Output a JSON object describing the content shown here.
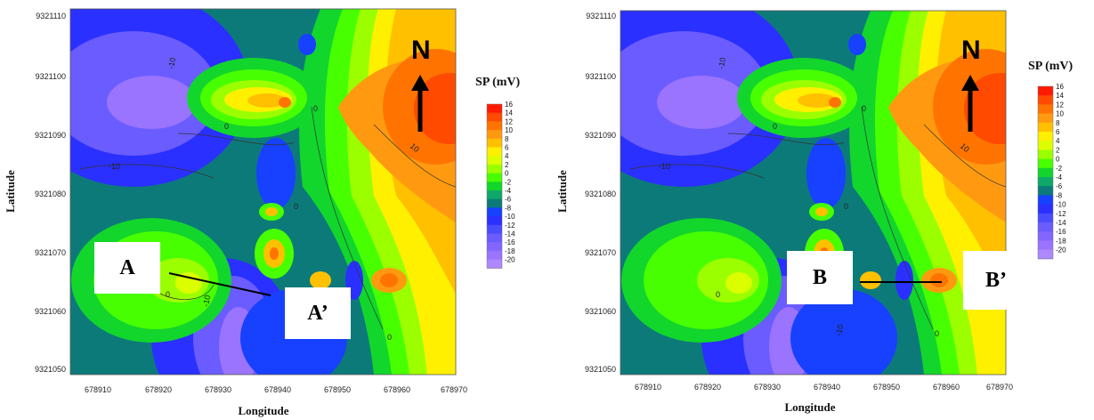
{
  "colorbar": {
    "title": "SP (mV)",
    "levels": [
      16,
      14,
      12,
      10,
      8,
      6,
      4,
      2,
      0,
      -2,
      -4,
      -6,
      -8,
      -10,
      -12,
      -14,
      -16,
      -18,
      -20
    ],
    "level_labels": [
      "16",
      "14",
      "12",
      "10",
      "8",
      "6",
      "4",
      "2",
      "0",
      "-2",
      "-4",
      "-6",
      "-8",
      "-10",
      "-12",
      "-14",
      "-16",
      "-18",
      "-20"
    ],
    "colors": [
      "#ff1a00",
      "#ff4a00",
      "#ff7400",
      "#ff9a10",
      "#ffc000",
      "#fff000",
      "#dcff00",
      "#9cff00",
      "#48ff00",
      "#12d62c",
      "#0ea86a",
      "#0d7a7a",
      "#1740ff",
      "#2a30ff",
      "#4a4aff",
      "#6a5cff",
      "#8466ff",
      "#9a74ff",
      "#ad88ff"
    ]
  },
  "north": {
    "label": "N"
  },
  "axes": {
    "xlabel": "Longitude",
    "ylabel": "Latitude",
    "x_ticks": [
      "678910",
      "678920",
      "678930",
      "678940",
      "678950",
      "678960",
      "678970"
    ],
    "y_ticks": [
      "9321110",
      "9321100",
      "9321090",
      "9321080",
      "9321070",
      "9321060",
      "9321050"
    ]
  },
  "contour_labels": [
    "-10",
    "0",
    "10",
    "-10",
    "0",
    "0",
    "0",
    "-10",
    "0"
  ],
  "panels": [
    {
      "profile_start": "A",
      "profile_end": "A’"
    },
    {
      "profile_start": "B",
      "profile_end": "B’"
    }
  ]
}
